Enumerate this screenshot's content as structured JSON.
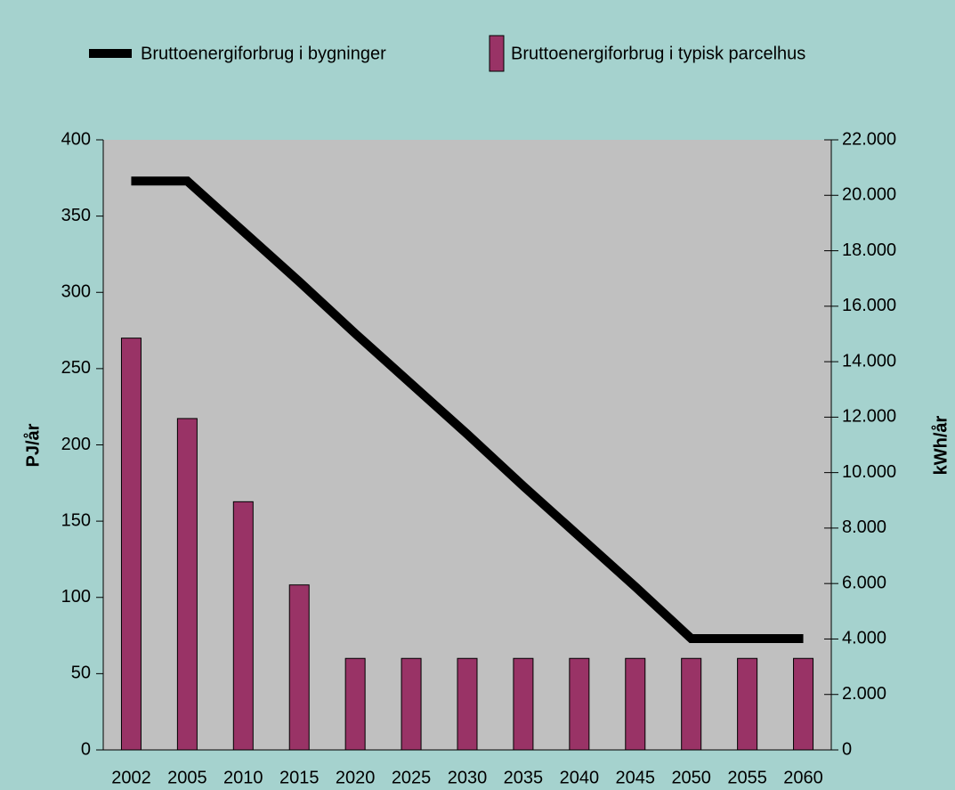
{
  "chart_data": {
    "type": "bar_line",
    "categories": [
      "2002",
      "2005",
      "2010",
      "2015",
      "2020",
      "2025",
      "2030",
      "2035",
      "2040",
      "2045",
      "2050",
      "2055",
      "2060"
    ],
    "y_label": "PJ/år",
    "y2_label": "kWh/år",
    "ylim": [
      0,
      400
    ],
    "yticks": [
      0,
      50,
      100,
      150,
      200,
      250,
      300,
      350,
      400
    ],
    "y2lim": [
      0,
      22000
    ],
    "y2ticks": [
      0,
      {
        "value": 2000,
        "label": "2.000"
      },
      {
        "value": 4000,
        "label": "4.000"
      },
      {
        "value": 6000,
        "label": "6.000"
      },
      {
        "value": 8000,
        "label": "8.000"
      },
      {
        "value": 10000,
        "label": "10.000"
      },
      {
        "value": 12000,
        "label": "12.000"
      },
      {
        "value": 14000,
        "label": "14.000"
      },
      {
        "value": 16000,
        "label": "16.000"
      },
      {
        "value": 18000,
        "label": "18.000"
      },
      {
        "value": 20000,
        "label": "20.000"
      },
      {
        "value": 22000,
        "label": "22.000"
      }
    ],
    "legend": "top",
    "series": [
      {
        "name": "Bruttoenergiforbrug i bygninger",
        "type": "line",
        "color": "#000000",
        "axis": "y",
        "values": [
          373,
          373,
          340,
          307,
          273,
          240,
          207,
          173,
          140,
          107,
          73,
          73,
          73
        ]
      },
      {
        "name": "Bruttoenergiforbrug i typisk parcelhus",
        "type": "bar",
        "color": "#993366",
        "axis": "y2",
        "values": [
          14850,
          11950,
          8950,
          5950,
          3300,
          3300,
          3300,
          3300,
          3300,
          3300,
          3300,
          3300,
          3300
        ]
      }
    ]
  }
}
